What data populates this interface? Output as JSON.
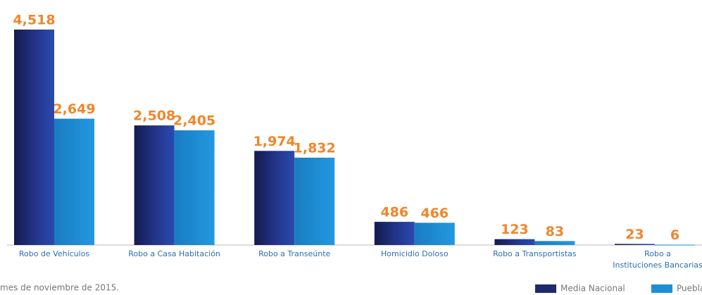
{
  "chart_data": {
    "type": "bar",
    "categories": [
      "Robo de Vehículos",
      "Robo a Casa Habitación",
      "Robo a Transeúnte",
      "Homicidio Doloso",
      "Robo a Transportistas",
      [
        "Robo a",
        "Instituciones Bancarias"
      ]
    ],
    "series": [
      {
        "name": "Media Nacional",
        "color": "#1f2a6e",
        "values": [
          4518,
          2508,
          1974,
          486,
          123,
          23
        ],
        "value_labels": [
          "4,518",
          "2,508",
          "1,974",
          "486",
          "123",
          "23"
        ]
      },
      {
        "name": "Puebla",
        "color": "#1e8fd6",
        "values": [
          2649,
          2405,
          1832,
          466,
          83,
          6
        ],
        "value_labels": [
          "2,649",
          "2,405",
          "1,832",
          "466",
          "83",
          "6"
        ]
      }
    ],
    "ylim": [
      0,
      4518
    ],
    "footnote": "mes de noviembre de 2015."
  }
}
